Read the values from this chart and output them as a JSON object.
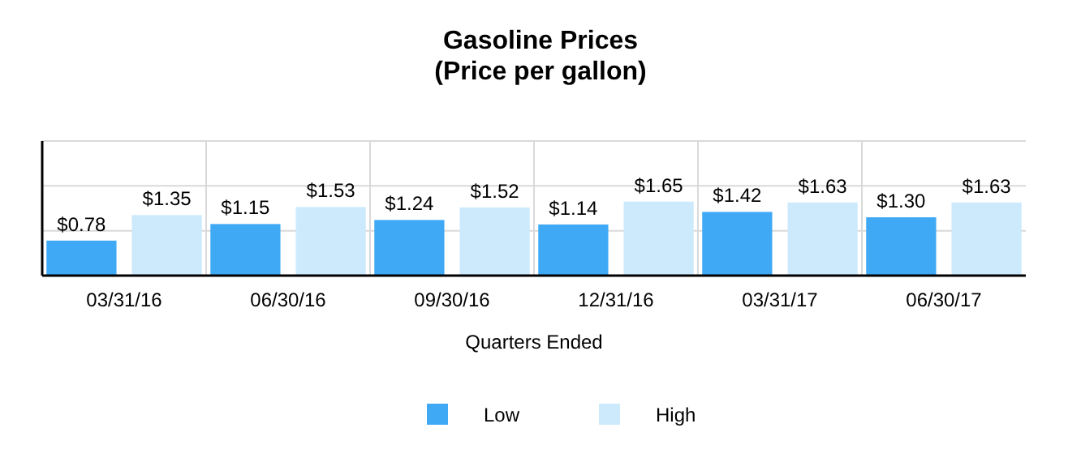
{
  "chart_data": {
    "type": "bar",
    "title": "Gasoline Prices\n(Price per gallon)",
    "xlabel": "Quarters Ended",
    "categories": [
      "03/31/16",
      "06/30/16",
      "09/30/16",
      "12/31/16",
      "03/31/17",
      "06/30/17"
    ],
    "series": [
      {
        "name": "Low",
        "color": "#3fa9f5",
        "values": [
          0.78,
          1.15,
          1.24,
          1.14,
          1.42,
          1.3
        ],
        "value_labels": [
          "$0.78",
          "$1.15",
          "$1.24",
          "$1.14",
          "$1.42",
          "$1.30"
        ]
      },
      {
        "name": "High",
        "color": "#cdeafc",
        "values": [
          1.35,
          1.53,
          1.52,
          1.65,
          1.63,
          1.63
        ],
        "value_labels": [
          "$1.35",
          "$1.53",
          "$1.52",
          "$1.65",
          "$1.63",
          "$1.63"
        ]
      }
    ],
    "ylim": [
      0,
      3
    ],
    "yticks": [
      {
        "value": 1,
        "label": null
      },
      {
        "value": 2,
        "label": null
      },
      {
        "value": 3,
        "label": null
      }
    ],
    "tick_labels": "x",
    "grid": true,
    "legend": "bottom"
  }
}
